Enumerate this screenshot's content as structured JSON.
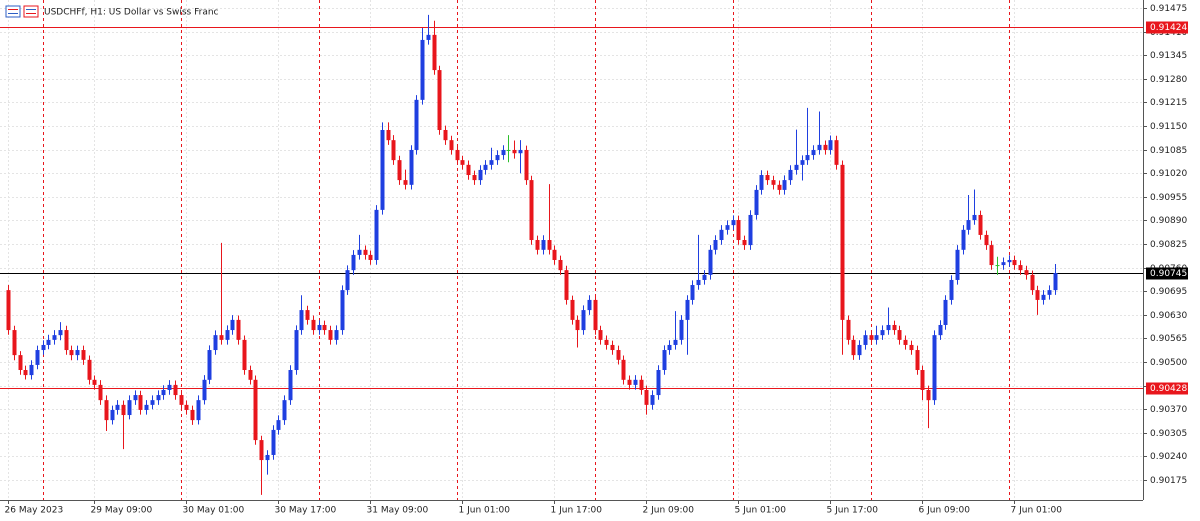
{
  "chart_data": {
    "type": "candlestick",
    "title": "USDCHFf, H1:  US Dollar vs Swiss Franc",
    "up_color": "#1f3fe0",
    "down_color": "#e8161c",
    "doji_color": "#2cbf2c",
    "grid": true,
    "ylim": [
      0.9012,
      0.91497
    ],
    "yticks": [
      0.90175,
      {
        "value": 0.9024,
        "label": "0.90240"
      },
      0.90305,
      {
        "value": 0.9037,
        "label": "0.90370"
      },
      0.90435,
      {
        "value": 0.905,
        "label": "0.90500"
      },
      0.90565,
      {
        "value": 0.9063,
        "label": "0.90630"
      },
      0.90695,
      {
        "value": 0.9076,
        "label": "0.90760"
      },
      0.90825,
      {
        "value": 0.9089,
        "label": "0.90890"
      },
      0.90955,
      {
        "value": 0.9102,
        "label": "0.91020"
      },
      0.91085,
      {
        "value": 0.9115,
        "label": "0.91150"
      },
      0.91215,
      {
        "value": 0.9128,
        "label": "0.91280"
      },
      0.91345,
      {
        "value": 0.9141,
        "label": "0.91410"
      },
      0.91475
    ],
    "levels": [
      {
        "value": 0.91424,
        "color": "#e8161c"
      },
      {
        "value": 0.90745,
        "color": "#000000"
      },
      {
        "value": 0.90428,
        "color": "#e8161c"
      }
    ],
    "categories": [
      "26 May 2023",
      null,
      null,
      null,
      null,
      null,
      null,
      null,
      null,
      null,
      null,
      null,
      null,
      null,
      null,
      "29 May 09:00",
      null,
      null,
      null,
      null,
      null,
      null,
      null,
      null,
      null,
      null,
      null,
      null,
      null,
      null,
      null,
      "30 May 01:00",
      null,
      null,
      null,
      null,
      null,
      null,
      null,
      null,
      null,
      null,
      null,
      null,
      null,
      null,
      null,
      "30 May 17:00",
      null,
      null,
      null,
      null,
      null,
      null,
      null,
      null,
      null,
      null,
      null,
      null,
      null,
      null,
      null,
      "31 May 09:00",
      null,
      null,
      null,
      null,
      null,
      null,
      null,
      null,
      null,
      null,
      null,
      null,
      null,
      null,
      null,
      "1 Jun 01:00",
      null,
      null,
      null,
      null,
      null,
      null,
      null,
      null,
      null,
      null,
      null,
      null,
      null,
      null,
      null,
      "1 Jun 17:00",
      null,
      null,
      null,
      null,
      null,
      null,
      null,
      null,
      null,
      null,
      null,
      null,
      null,
      null,
      null,
      "2 Jun 09:00",
      null,
      null,
      null,
      null,
      null,
      null,
      null,
      null,
      null,
      null,
      null,
      null,
      null,
      null,
      null,
      "5 Jun 01:00",
      null,
      null,
      null,
      null,
      null,
      null,
      null,
      null,
      null,
      null,
      null,
      null,
      null,
      null,
      null,
      "5 Jun 17:00",
      null,
      null,
      null,
      null,
      null,
      null,
      null,
      null,
      null,
      null,
      null,
      null,
      null,
      null,
      null,
      "6 Jun 09:00",
      null,
      null,
      null,
      null,
      null,
      null,
      null,
      null,
      null,
      null,
      null,
      null,
      null,
      null,
      null,
      "7 Jun 01:00",
      null,
      null,
      null,
      null,
      null,
      null,
      null
    ],
    "ohlc": [
      [
        0.90698,
        0.90712,
        0.90575,
        0.90588
      ],
      [
        0.90588,
        0.906,
        0.90505,
        0.90519
      ],
      [
        0.90519,
        0.9053,
        0.90465,
        0.90478
      ],
      [
        0.90478,
        0.9049,
        0.90452,
        0.90464
      ],
      [
        0.90464,
        0.90505,
        0.90452,
        0.90492
      ],
      [
        0.90492,
        0.90545,
        0.9048,
        0.90533
      ],
      [
        0.90533,
        0.9056,
        0.9052,
        0.90547
      ],
      [
        0.90547,
        0.90575,
        0.90535,
        0.90561
      ],
      [
        0.90561,
        0.90588,
        0.90548,
        0.90574
      ],
      [
        0.90574,
        0.9061,
        0.9056,
        0.90588
      ],
      [
        0.90588,
        0.906,
        0.9052,
        0.90533
      ],
      [
        0.90533,
        0.90545,
        0.90505,
        0.90519
      ],
      [
        0.90519,
        0.90545,
        0.90505,
        0.90533
      ],
      [
        0.90533,
        0.90545,
        0.90492,
        0.90506
      ],
      [
        0.90506,
        0.90518,
        0.90438,
        0.90451
      ],
      [
        0.90451,
        0.90463,
        0.90424,
        0.90437
      ],
      [
        0.90437,
        0.9045,
        0.90382,
        0.90395
      ],
      [
        0.90395,
        0.90408,
        0.9031,
        0.9034
      ],
      [
        0.9034,
        0.9038,
        0.90328,
        0.90368
      ],
      [
        0.90368,
        0.90395,
        0.90355,
        0.90382
      ],
      [
        0.90382,
        0.90394,
        0.9026,
        0.90354
      ],
      [
        0.90354,
        0.90408,
        0.90342,
        0.90395
      ],
      [
        0.90395,
        0.90422,
        0.90382,
        0.90409
      ],
      [
        0.90409,
        0.90421,
        0.90355,
        0.90368
      ],
      [
        0.90368,
        0.90395,
        0.90355,
        0.90382
      ],
      [
        0.90382,
        0.90408,
        0.9037,
        0.90395
      ],
      [
        0.90395,
        0.90422,
        0.90382,
        0.90409
      ],
      [
        0.90409,
        0.90436,
        0.90396,
        0.90423
      ],
      [
        0.90423,
        0.9045,
        0.9041,
        0.90437
      ],
      [
        0.90437,
        0.90449,
        0.90396,
        0.90409
      ],
      [
        0.90409,
        0.90421,
        0.90369,
        0.90382
      ],
      [
        0.90382,
        0.90394,
        0.90355,
        0.90368
      ],
      [
        0.90368,
        0.9038,
        0.90327,
        0.9034
      ],
      [
        0.9034,
        0.90408,
        0.90328,
        0.90395
      ],
      [
        0.90395,
        0.90464,
        0.90383,
        0.90451
      ],
      [
        0.90451,
        0.90546,
        0.90439,
        0.90533
      ],
      [
        0.90533,
        0.90587,
        0.9052,
        0.90574
      ],
      [
        0.90574,
        0.90828,
        0.90548,
        0.90561
      ],
      [
        0.90561,
        0.90601,
        0.90548,
        0.90588
      ],
      [
        0.90588,
        0.90629,
        0.90575,
        0.90616
      ],
      [
        0.90616,
        0.90628,
        0.90548,
        0.90561
      ],
      [
        0.90561,
        0.90573,
        0.90465,
        0.90478
      ],
      [
        0.90478,
        0.9049,
        0.90438,
        0.90451
      ],
      [
        0.90451,
        0.90463,
        0.90272,
        0.90285
      ],
      [
        0.90285,
        0.90297,
        0.90134,
        0.9023
      ],
      [
        0.9023,
        0.90257,
        0.9019,
        0.90244
      ],
      [
        0.90244,
        0.90326,
        0.90231,
        0.90313
      ],
      [
        0.90313,
        0.90353,
        0.903,
        0.9034
      ],
      [
        0.9034,
        0.90408,
        0.90327,
        0.90395
      ],
      [
        0.90395,
        0.90491,
        0.90382,
        0.90478
      ],
      [
        0.90478,
        0.90601,
        0.90465,
        0.90588
      ],
      [
        0.90588,
        0.90684,
        0.90575,
        0.90643
      ],
      [
        0.90643,
        0.90655,
        0.90603,
        0.90616
      ],
      [
        0.90616,
        0.90628,
        0.90575,
        0.90588
      ],
      [
        0.90588,
        0.90615,
        0.90575,
        0.90602
      ],
      [
        0.90602,
        0.90614,
        0.90575,
        0.90588
      ],
      [
        0.90588,
        0.906,
        0.90548,
        0.90561
      ],
      [
        0.90561,
        0.90601,
        0.90548,
        0.90588
      ],
      [
        0.90588,
        0.90711,
        0.90575,
        0.90698
      ],
      [
        0.90698,
        0.90766,
        0.90685,
        0.90753
      ],
      [
        0.90753,
        0.90808,
        0.9074,
        0.90795
      ],
      [
        0.90795,
        0.9085,
        0.90782,
        0.90809
      ],
      [
        0.90809,
        0.90821,
        0.90782,
        0.90795
      ],
      [
        0.90795,
        0.90807,
        0.90768,
        0.90781
      ],
      [
        0.90781,
        0.90932,
        0.90768,
        0.90919
      ],
      [
        0.90919,
        0.9116,
        0.90906,
        0.91139
      ],
      [
        0.91139,
        0.9116,
        0.91098,
        0.91111
      ],
      [
        0.91111,
        0.91125,
        0.91043,
        0.91056
      ],
      [
        0.91056,
        0.91068,
        0.90988,
        0.91001
      ],
      [
        0.91001,
        0.9103,
        0.90975,
        0.90988
      ],
      [
        0.90988,
        0.91097,
        0.90975,
        0.91084
      ],
      [
        0.91084,
        0.91235,
        0.91071,
        0.91222
      ],
      [
        0.91222,
        0.9142,
        0.91209,
        0.91387
      ],
      [
        0.91387,
        0.91456,
        0.91374,
        0.91401
      ],
      [
        0.91401,
        0.9144,
        0.91291,
        0.91304
      ],
      [
        0.91304,
        0.91316,
        0.91126,
        0.91139
      ],
      [
        0.91139,
        0.91151,
        0.91098,
        0.91111
      ],
      [
        0.91111,
        0.91123,
        0.91071,
        0.91084
      ],
      [
        0.91084,
        0.91096,
        0.91043,
        0.91056
      ],
      [
        0.91056,
        0.91068,
        0.9103,
        0.91043
      ],
      [
        0.91043,
        0.91055,
        0.91002,
        0.91015
      ],
      [
        0.91015,
        0.91027,
        0.90988,
        0.91001
      ],
      [
        0.91001,
        0.91042,
        0.90988,
        0.91029
      ],
      [
        0.91029,
        0.91056,
        0.91016,
        0.91043
      ],
      [
        0.91043,
        0.9109,
        0.9103,
        0.91056
      ],
      [
        0.91056,
        0.91083,
        0.91043,
        0.9107
      ],
      [
        0.9107,
        0.91097,
        0.91057,
        0.91084
      ],
      [
        0.91084,
        0.91125,
        0.9105,
        0.91084
      ],
      [
        0.91084,
        0.9111,
        0.9106,
        0.91075
      ],
      [
        0.91075,
        0.91111,
        0.9102,
        0.91084
      ],
      [
        0.91084,
        0.91096,
        0.90988,
        0.91001
      ],
      [
        0.91001,
        0.91013,
        0.90823,
        0.90836
      ],
      [
        0.90836,
        0.90848,
        0.90796,
        0.90809
      ],
      [
        0.90809,
        0.90849,
        0.90796,
        0.90836
      ],
      [
        0.90836,
        0.9099,
        0.90796,
        0.90809
      ],
      [
        0.90809,
        0.90821,
        0.90768,
        0.90781
      ],
      [
        0.90781,
        0.90793,
        0.9074,
        0.90753
      ],
      [
        0.90753,
        0.90765,
        0.90658,
        0.90671
      ],
      [
        0.90671,
        0.90683,
        0.90603,
        0.90616
      ],
      [
        0.90616,
        0.90628,
        0.9054,
        0.90588
      ],
      [
        0.90588,
        0.90656,
        0.90575,
        0.90643
      ],
      [
        0.90643,
        0.90684,
        0.9063,
        0.90671
      ],
      [
        0.90671,
        0.90683,
        0.90575,
        0.90588
      ],
      [
        0.90588,
        0.906,
        0.90548,
        0.90561
      ],
      [
        0.90561,
        0.90573,
        0.90534,
        0.90547
      ],
      [
        0.90547,
        0.90559,
        0.9052,
        0.90533
      ],
      [
        0.90533,
        0.90545,
        0.90493,
        0.90506
      ],
      [
        0.90506,
        0.90518,
        0.90438,
        0.90451
      ],
      [
        0.90451,
        0.90463,
        0.90424,
        0.90437
      ],
      [
        0.90437,
        0.90464,
        0.90424,
        0.90451
      ],
      [
        0.90451,
        0.90463,
        0.9041,
        0.90423
      ],
      [
        0.90423,
        0.90435,
        0.90355,
        0.90382
      ],
      [
        0.90382,
        0.90422,
        0.90369,
        0.90409
      ],
      [
        0.90409,
        0.90491,
        0.90396,
        0.90478
      ],
      [
        0.90478,
        0.90546,
        0.90465,
        0.90533
      ],
      [
        0.90533,
        0.9056,
        0.9052,
        0.90547
      ],
      [
        0.90547,
        0.9064,
        0.90534,
        0.90561
      ],
      [
        0.90561,
        0.90629,
        0.90548,
        0.90616
      ],
      [
        0.90616,
        0.90684,
        0.9052,
        0.90671
      ],
      [
        0.90671,
        0.90725,
        0.90658,
        0.90712
      ],
      [
        0.90712,
        0.9085,
        0.90699,
        0.90726
      ],
      [
        0.90726,
        0.90753,
        0.90713,
        0.9074
      ],
      [
        0.9074,
        0.90822,
        0.90727,
        0.90809
      ],
      [
        0.90809,
        0.90849,
        0.90796,
        0.90836
      ],
      [
        0.90836,
        0.90877,
        0.90823,
        0.90864
      ],
      [
        0.90864,
        0.9089,
        0.90851,
        0.90877
      ],
      [
        0.90877,
        0.90904,
        0.90864,
        0.90891
      ],
      [
        0.90891,
        0.90903,
        0.90823,
        0.90836
      ],
      [
        0.90836,
        0.90848,
        0.90809,
        0.90822
      ],
      [
        0.90822,
        0.90918,
        0.90809,
        0.90905
      ],
      [
        0.90905,
        0.90987,
        0.90892,
        0.90974
      ],
      [
        0.90974,
        0.91028,
        0.90961,
        0.91015
      ],
      [
        0.91015,
        0.91027,
        0.90988,
        0.91001
      ],
      [
        0.91001,
        0.91013,
        0.90975,
        0.90988
      ],
      [
        0.90988,
        0.91,
        0.90961,
        0.90974
      ],
      [
        0.90974,
        0.91014,
        0.90961,
        0.91001
      ],
      [
        0.91001,
        0.91042,
        0.90988,
        0.91029
      ],
      [
        0.91029,
        0.9114,
        0.91016,
        0.91043
      ],
      [
        0.91043,
        0.91069,
        0.91,
        0.91056
      ],
      [
        0.91056,
        0.912,
        0.91043,
        0.9107
      ],
      [
        0.9107,
        0.91097,
        0.91057,
        0.91084
      ],
      [
        0.91084,
        0.9119,
        0.91071,
        0.91098
      ],
      [
        0.91098,
        0.9111,
        0.91071,
        0.91084
      ],
      [
        0.91084,
        0.91124,
        0.91071,
        0.91111
      ],
      [
        0.91111,
        0.91123,
        0.9103,
        0.91043
      ],
      [
        0.91043,
        0.91055,
        0.9052,
        0.90616
      ],
      [
        0.90616,
        0.90628,
        0.90548,
        0.90561
      ],
      [
        0.90561,
        0.90573,
        0.90506,
        0.90519
      ],
      [
        0.90519,
        0.9056,
        0.90506,
        0.90547
      ],
      [
        0.90547,
        0.90587,
        0.90534,
        0.90574
      ],
      [
        0.90574,
        0.90586,
        0.90548,
        0.90561
      ],
      [
        0.90561,
        0.906,
        0.90548,
        0.90574
      ],
      [
        0.90574,
        0.90601,
        0.90561,
        0.90588
      ],
      [
        0.90588,
        0.9065,
        0.90575,
        0.90602
      ],
      [
        0.90602,
        0.90614,
        0.90575,
        0.90588
      ],
      [
        0.90588,
        0.906,
        0.90548,
        0.90561
      ],
      [
        0.90561,
        0.90573,
        0.90534,
        0.90547
      ],
      [
        0.90547,
        0.90559,
        0.9052,
        0.90533
      ],
      [
        0.90533,
        0.90545,
        0.90465,
        0.90478
      ],
      [
        0.90478,
        0.9049,
        0.90395,
        0.90423
      ],
      [
        0.90423,
        0.90435,
        0.90318,
        0.90395
      ],
      [
        0.90395,
        0.90587,
        0.90382,
        0.90574
      ],
      [
        0.90574,
        0.90615,
        0.90561,
        0.90602
      ],
      [
        0.90602,
        0.90684,
        0.90589,
        0.90671
      ],
      [
        0.90671,
        0.90739,
        0.90658,
        0.90726
      ],
      [
        0.90726,
        0.90822,
        0.90713,
        0.90809
      ],
      [
        0.90809,
        0.90877,
        0.90796,
        0.90864
      ],
      [
        0.90864,
        0.9096,
        0.90851,
        0.90891
      ],
      [
        0.90891,
        0.90975,
        0.90878,
        0.90905
      ],
      [
        0.90905,
        0.90917,
        0.90837,
        0.9085
      ],
      [
        0.9085,
        0.90862,
        0.90809,
        0.90822
      ],
      [
        0.90822,
        0.90834,
        0.90754,
        0.90767
      ],
      [
        0.90767,
        0.9079,
        0.9074,
        0.90767
      ],
      [
        0.90767,
        0.90788,
        0.90754,
        0.90775
      ],
      [
        0.90775,
        0.90794,
        0.90762,
        0.90781
      ],
      [
        0.90781,
        0.90793,
        0.90754,
        0.90767
      ],
      [
        0.90767,
        0.9078,
        0.9074,
        0.90753
      ],
      [
        0.90753,
        0.90765,
        0.90727,
        0.9074
      ],
      [
        0.9074,
        0.90752,
        0.90685,
        0.90698
      ],
      [
        0.90698,
        0.9071,
        0.9063,
        0.90671
      ],
      [
        0.90671,
        0.90698,
        0.90658,
        0.90685
      ],
      [
        0.90685,
        0.90711,
        0.90672,
        0.90698
      ],
      [
        0.90698,
        0.9077,
        0.90685,
        0.90745
      ]
    ]
  }
}
